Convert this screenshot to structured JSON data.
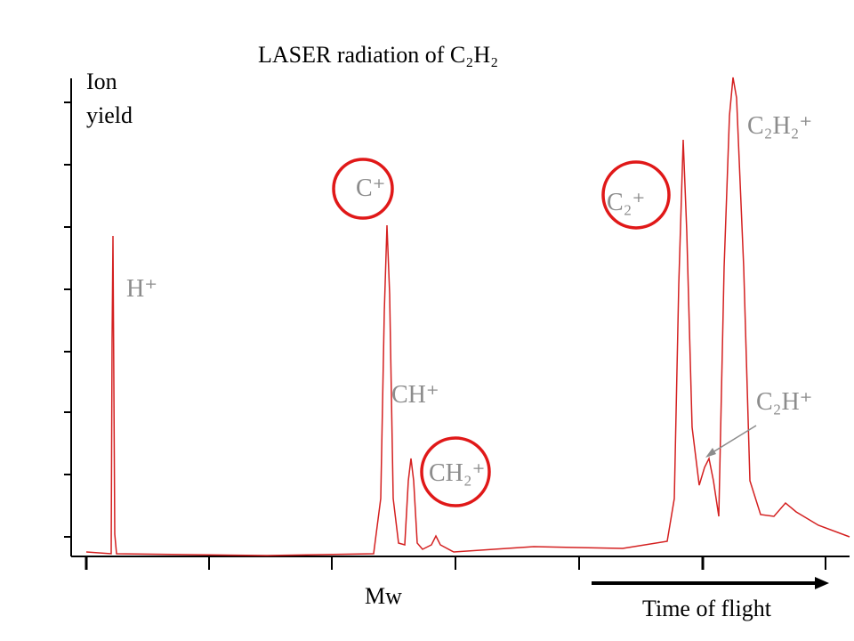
{
  "header": {
    "title": "LASER radiation of C₂H₂"
  },
  "axes": {
    "y_label_lines": [
      "Ion",
      "yield"
    ],
    "x_label": "Mw",
    "arrow_label": "Time of flight"
  },
  "peaks": [
    {
      "label": "H⁺",
      "circled": false
    },
    {
      "label": "C⁺",
      "circled": true
    },
    {
      "label": "CH⁺",
      "circled": false
    },
    {
      "label": "CH₂⁺",
      "circled": true
    },
    {
      "label": "C₂⁺",
      "circled": true
    },
    {
      "label": "C₂H₂⁺",
      "circled": false
    },
    {
      "label": "C₂H⁺",
      "circled": false
    }
  ]
}
